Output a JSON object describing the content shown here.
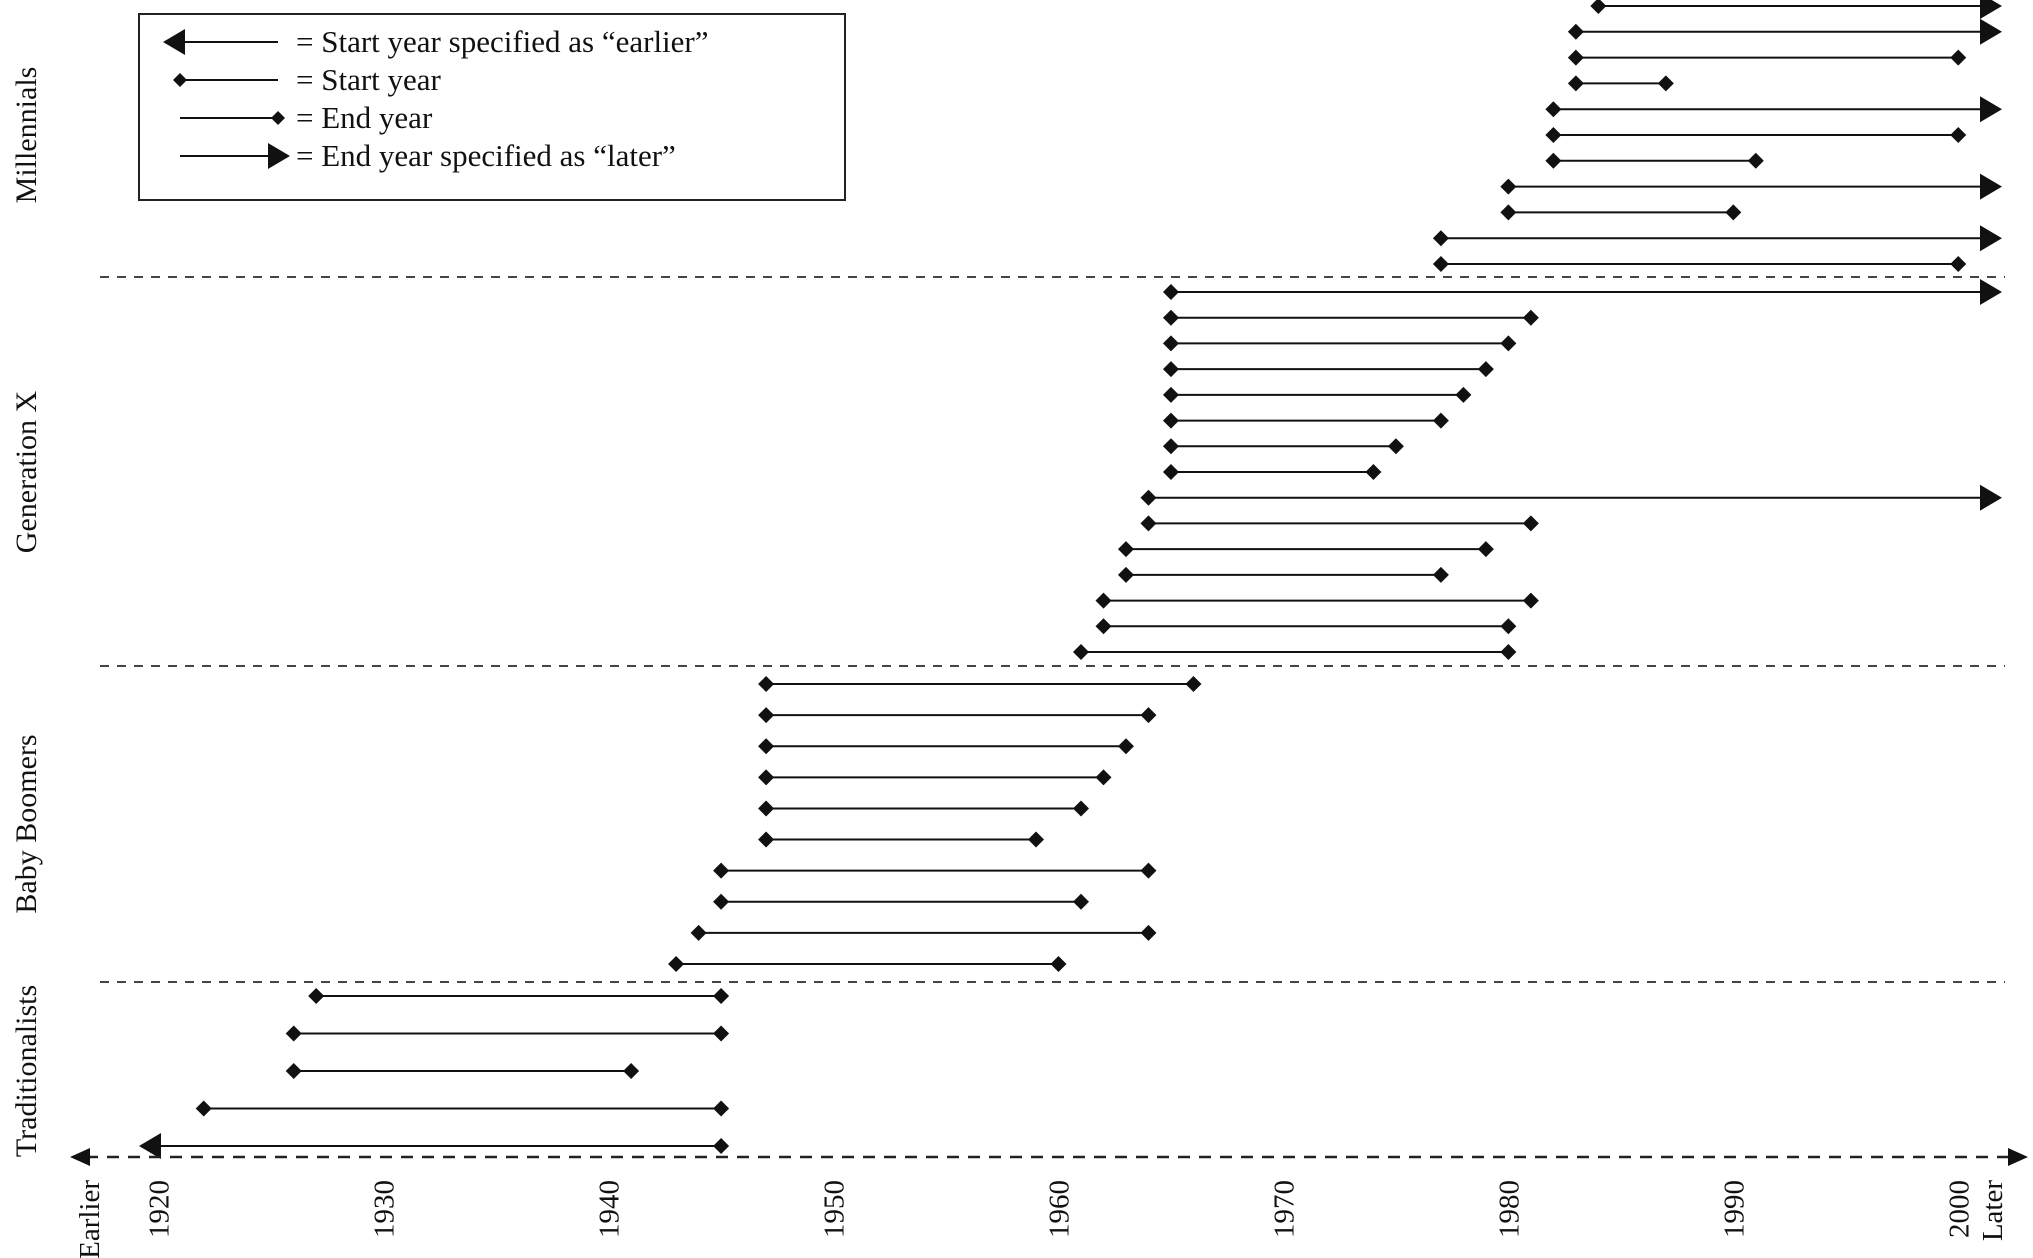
{
  "chart_data": {
    "type": "range-timeline",
    "title": "",
    "xlabel": "",
    "ylabel": "",
    "x_axis": {
      "min_label": "Earlier",
      "max_label": "Later",
      "ticks": [
        1920,
        1930,
        1940,
        1950,
        1960,
        1970,
        1980,
        1990,
        2000
      ],
      "range": [
        1918.5,
        2001.5
      ]
    },
    "legend": {
      "placement": "top-left",
      "entries": [
        {
          "marker": "start-earlier",
          "label": "= Start year specified as “earlier”"
        },
        {
          "marker": "start",
          "label": "= Start year"
        },
        {
          "marker": "end",
          "label": "= End year"
        },
        {
          "marker": "end-later",
          "label": "= End year specified as “later”"
        }
      ]
    },
    "generations": [
      {
        "name": "Millennials",
        "ranges": [
          {
            "start": 1984,
            "end": "later"
          },
          {
            "start": 1983,
            "end": "later"
          },
          {
            "start": 1983,
            "end": 2000
          },
          {
            "start": 1983,
            "end": 1987
          },
          {
            "start": 1982,
            "end": "later"
          },
          {
            "start": 1982,
            "end": 2000
          },
          {
            "start": 1982,
            "end": 1991
          },
          {
            "start": 1980,
            "end": "later"
          },
          {
            "start": 1980,
            "end": 1990
          },
          {
            "start": 1977,
            "end": "later"
          },
          {
            "start": 1977,
            "end": 2000
          }
        ]
      },
      {
        "name": "Generation X",
        "ranges": [
          {
            "start": 1965,
            "end": "later"
          },
          {
            "start": 1965,
            "end": 1981
          },
          {
            "start": 1965,
            "end": 1980
          },
          {
            "start": 1965,
            "end": 1979
          },
          {
            "start": 1965,
            "end": 1978
          },
          {
            "start": 1965,
            "end": 1977
          },
          {
            "start": 1965,
            "end": 1975
          },
          {
            "start": 1965,
            "end": 1974
          },
          {
            "start": 1964,
            "end": "later"
          },
          {
            "start": 1964,
            "end": 1981
          },
          {
            "start": 1963,
            "end": 1979
          },
          {
            "start": 1963,
            "end": 1977
          },
          {
            "start": 1962,
            "end": 1981
          },
          {
            "start": 1962,
            "end": 1980
          },
          {
            "start": 1961,
            "end": 1980
          }
        ]
      },
      {
        "name": "Baby Boomers",
        "ranges": [
          {
            "start": 1947,
            "end": 1966
          },
          {
            "start": 1947,
            "end": 1964
          },
          {
            "start": 1947,
            "end": 1963
          },
          {
            "start": 1947,
            "end": 1962
          },
          {
            "start": 1947,
            "end": 1961
          },
          {
            "start": 1947,
            "end": 1959
          },
          {
            "start": 1945,
            "end": 1964
          },
          {
            "start": 1945,
            "end": 1961
          },
          {
            "start": 1944,
            "end": 1964
          },
          {
            "start": 1943,
            "end": 1960
          }
        ]
      },
      {
        "name": "Traditionalists",
        "ranges": [
          {
            "start": 1927,
            "end": 1945
          },
          {
            "start": 1926,
            "end": 1945
          },
          {
            "start": 1926,
            "end": 1941
          },
          {
            "start": 1922,
            "end": 1945
          },
          {
            "start": "earlier",
            "end": 1945
          }
        ]
      }
    ]
  }
}
